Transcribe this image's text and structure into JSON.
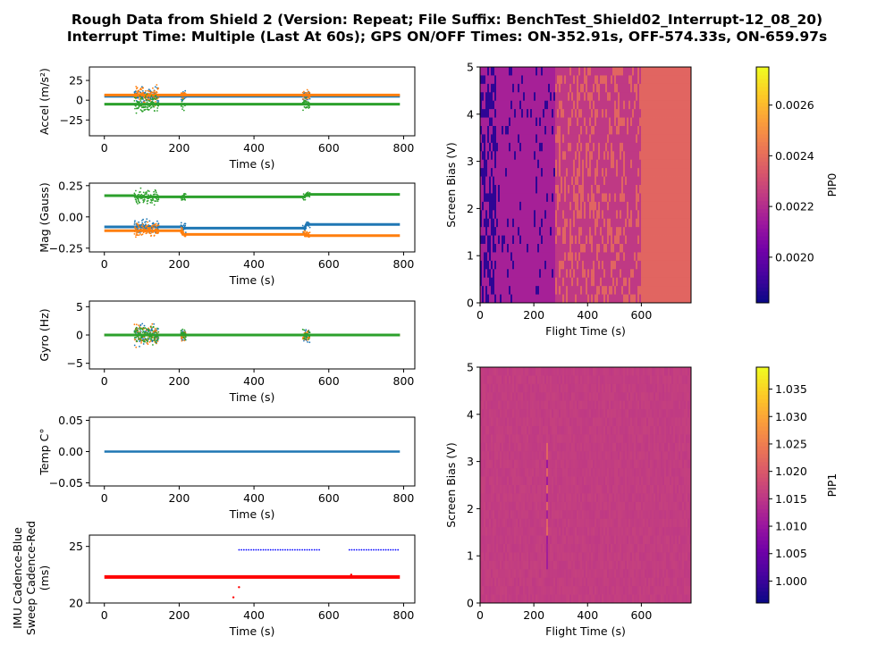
{
  "title_line1": "Rough Data from Shield 2 (Version: Repeat; File Suffix: BenchTest_Shield02_Interrupt-12_08_20)",
  "title_line2": "Interrupt Time: Multiple (Last At 60s); GPS ON/OFF Times: ON-352.91s, OFF-574.33s, ON-659.97s",
  "colors": {
    "blue": "#1f77b4",
    "orange": "#ff7f0e",
    "green": "#2ca02c",
    "red": "#ff0000",
    "dark_blue": "#0000ff",
    "plasma": [
      "#0d0887",
      "#46039f",
      "#7201a8",
      "#9c179e",
      "#bd3786",
      "#d8576b",
      "#ed7953",
      "#fb9f3a",
      "#fdca26",
      "#f0f921"
    ]
  },
  "chart_data": [
    {
      "id": "accel",
      "type": "scatter",
      "xlabel": "Time (s)",
      "ylabel": "Accel (m/s²)",
      "xlim": [
        -40,
        830
      ],
      "ylim": [
        -45,
        42
      ],
      "xticks": [
        0,
        200,
        400,
        600,
        800
      ],
      "yticks": [
        -25,
        0,
        25
      ],
      "series": [
        {
          "color": "blue",
          "baseline": 5,
          "noise": 1.5
        },
        {
          "color": "orange",
          "baseline": 6.5,
          "noise": 1.5
        },
        {
          "color": "green",
          "baseline": -5,
          "noise": 1.5
        }
      ],
      "bursts": [
        [
          80,
          145
        ],
        [
          205,
          218
        ],
        [
          530,
          550
        ]
      ],
      "burst_amplitude": 15
    },
    {
      "id": "mag",
      "type": "scatter",
      "xlabel": "Time (s)",
      "ylabel": "Mag (Gauss)",
      "xlim": [
        -40,
        830
      ],
      "ylim": [
        -0.28,
        0.27
      ],
      "xticks": [
        0,
        200,
        400,
        600,
        800
      ],
      "yticks": [
        -0.25,
        0.0,
        0.25
      ],
      "ytick_labels": [
        "−0.25",
        "0.00",
        "0.25"
      ],
      "series": [
        {
          "color": "blue",
          "baseline": -0.08,
          "segments": [
            [
              0,
              210,
              -0.08
            ],
            [
              210,
              540,
              -0.09
            ],
            [
              540,
              790,
              -0.06
            ]
          ]
        },
        {
          "color": "orange",
          "segments": [
            [
              0,
              210,
              -0.11
            ],
            [
              210,
              540,
              -0.14
            ],
            [
              540,
              790,
              -0.15
            ]
          ]
        },
        {
          "color": "green",
          "segments": [
            [
              0,
              85,
              0.17
            ],
            [
              85,
              540,
              0.16
            ],
            [
              540,
              790,
              0.18
            ]
          ]
        }
      ],
      "bursts": [
        [
          80,
          145
        ],
        [
          205,
          218
        ],
        [
          530,
          550
        ]
      ],
      "burst_amplitude": 0.08
    },
    {
      "id": "gyro",
      "type": "scatter",
      "xlabel": "Time (s)",
      "ylabel": "Gyro (Hz)",
      "xlim": [
        -40,
        830
      ],
      "ylim": [
        -6,
        6
      ],
      "xticks": [
        0,
        200,
        400,
        600,
        800
      ],
      "yticks": [
        -5,
        0,
        5
      ],
      "series": [
        {
          "color": "blue",
          "baseline": 0
        },
        {
          "color": "orange",
          "baseline": 0
        },
        {
          "color": "green",
          "baseline": 0
        }
      ],
      "bursts": [
        [
          80,
          145
        ],
        [
          205,
          218
        ],
        [
          530,
          550
        ]
      ],
      "burst_amplitude": 2.5
    },
    {
      "id": "temp",
      "type": "line",
      "xlabel": "Time (s)",
      "ylabel": "Temp C°",
      "xlim": [
        -40,
        830
      ],
      "ylim": [
        -0.055,
        0.055
      ],
      "xticks": [
        0,
        200,
        400,
        600,
        800
      ],
      "yticks": [
        -0.05,
        0.0,
        0.05
      ],
      "ytick_labels": [
        "−0.05",
        "0.00",
        "0.05"
      ],
      "series": [
        {
          "color": "blue",
          "x": [
            0,
            790
          ],
          "y": [
            0,
            0
          ]
        }
      ]
    },
    {
      "id": "cadence",
      "type": "scatter",
      "xlabel": "Time (s)",
      "ylabel_lines": [
        "IMU Cadence-Blue",
        "Sweep Cadence-Red",
        "(ms)"
      ],
      "xlim": [
        -40,
        830
      ],
      "ylim": [
        20,
        26
      ],
      "xticks": [
        0,
        200,
        400,
        600,
        800
      ],
      "yticks": [
        20,
        25
      ],
      "series": [
        {
          "name": "Sweep Cadence",
          "color": "red",
          "y": 22.3,
          "x_range": [
            0,
            790
          ],
          "outliers": [
            [
              345,
              20.5
            ],
            [
              360,
              21.4
            ],
            [
              660,
              22.5
            ]
          ]
        },
        {
          "name": "IMU Cadence",
          "color": "dark_blue",
          "y": 24.7,
          "x_ranges": [
            [
              360,
              575
            ],
            [
              655,
              790
            ]
          ]
        }
      ]
    },
    {
      "id": "pip0",
      "type": "heatmap",
      "xlabel": "Flight Time (s)",
      "ylabel": "Screen Bias (V)",
      "xlim": [
        0,
        785
      ],
      "ylim": [
        0,
        5
      ],
      "xticks": [
        0,
        200,
        400,
        600
      ],
      "yticks": [
        0,
        1,
        2,
        3,
        4,
        5
      ],
      "colorbar": {
        "label": "PIP0",
        "range": [
          0.00182,
          0.00275
        ],
        "ticks": [
          0.002,
          0.0022,
          0.0024,
          0.0026
        ],
        "tick_labels": [
          "0.0020",
          "0.0022",
          "0.0024",
          "0.0026"
        ]
      },
      "regions": [
        {
          "x": [
            0,
            60
          ],
          "value": 0.00188,
          "mix": 0.5
        },
        {
          "x": [
            60,
            280
          ],
          "value": 0.00216,
          "mix": 0.08
        },
        {
          "x": [
            280,
            600
          ],
          "value": 0.00224,
          "mix": 0.3
        },
        {
          "x": [
            600,
            785
          ],
          "value": 0.00238,
          "mix": 0.05
        }
      ]
    },
    {
      "id": "pip1",
      "type": "heatmap",
      "xlabel": "Flight Time (s)",
      "ylabel": "Screen Bias (V)",
      "xlim": [
        0,
        785
      ],
      "ylim": [
        0,
        5
      ],
      "xticks": [
        0,
        200,
        400,
        600
      ],
      "yticks": [
        0,
        1,
        2,
        3,
        4,
        5
      ],
      "colorbar": {
        "label": "PIP1",
        "range": [
          0.996,
          1.039
        ],
        "ticks": [
          1.0,
          1.005,
          1.01,
          1.015,
          1.02,
          1.025,
          1.03,
          1.035
        ],
        "tick_labels": [
          "1.000",
          "1.005",
          "1.010",
          "1.015",
          "1.020",
          "1.025",
          "1.030",
          "1.035"
        ]
      },
      "regions": [
        {
          "x": [
            0,
            785
          ],
          "value": 1.016,
          "mix": 0.0
        }
      ],
      "spike_x": 248
    }
  ]
}
